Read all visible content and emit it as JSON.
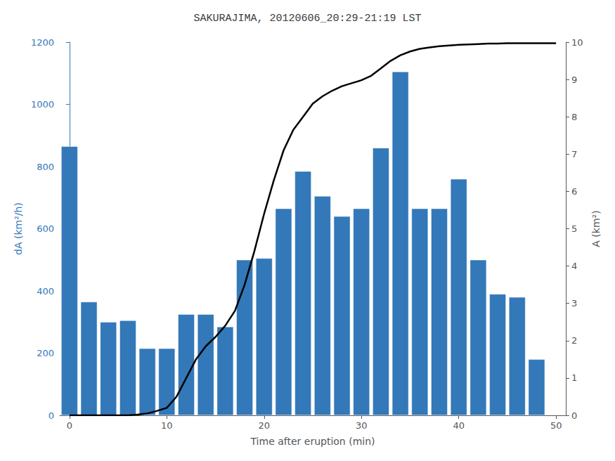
{
  "chart_data": {
    "type": "bar",
    "title": "SAKURAJIMA, 20120606_20:29-21:19 LST",
    "xlabel": "Time after eruption (min)",
    "ylabel": "dA (km²/h)",
    "y2label": "A (km²)",
    "xlim": [
      -1,
      51
    ],
    "xticks": [
      0,
      10,
      20,
      30,
      40,
      50
    ],
    "ylim": [
      0,
      1200
    ],
    "yticks": [
      0,
      200,
      400,
      600,
      800,
      1000,
      1200
    ],
    "y2lim": [
      0,
      10
    ],
    "y2ticks": [
      0,
      1,
      2,
      3,
      4,
      5,
      6,
      7,
      8,
      9,
      10
    ],
    "grid": false,
    "series": [
      {
        "type": "bar",
        "color": "#3378b8",
        "x": [
          0,
          2,
          4,
          6,
          8,
          10,
          12,
          14,
          16,
          18,
          20,
          22,
          24,
          26,
          28,
          30,
          32,
          34,
          36,
          38,
          40,
          42,
          44,
          46,
          48
        ],
        "values": [
          865,
          365,
          300,
          305,
          215,
          215,
          325,
          325,
          285,
          500,
          505,
          665,
          785,
          705,
          640,
          665,
          860,
          1105,
          665,
          665,
          760,
          500,
          390,
          380,
          180
        ]
      },
      {
        "type": "line",
        "axis": "y2",
        "color": "#000000",
        "x": [
          0,
          1,
          2,
          3,
          4,
          5,
          6,
          7,
          8,
          9,
          10,
          11,
          12,
          13,
          14,
          15,
          16,
          17,
          18,
          19,
          20,
          21,
          22,
          23,
          24,
          25,
          26,
          27,
          28,
          29,
          30,
          31,
          32,
          33,
          34,
          35,
          36,
          37,
          38,
          39,
          40,
          41,
          42,
          43,
          44,
          45,
          46,
          47,
          48,
          49,
          50
        ],
        "values": [
          0.0,
          0.0,
          0.0,
          0.0,
          0.0,
          0.0,
          0.0,
          0.02,
          0.05,
          0.12,
          0.2,
          0.5,
          1.0,
          1.5,
          1.85,
          2.1,
          2.4,
          2.8,
          3.5,
          4.4,
          5.4,
          6.3,
          7.1,
          7.65,
          8.0,
          8.35,
          8.55,
          8.7,
          8.82,
          8.9,
          8.98,
          9.1,
          9.3,
          9.5,
          9.65,
          9.75,
          9.82,
          9.86,
          9.89,
          9.91,
          9.93,
          9.94,
          9.95,
          9.96,
          9.96,
          9.97,
          9.97,
          9.97,
          9.97,
          9.97,
          9.97
        ]
      }
    ]
  }
}
